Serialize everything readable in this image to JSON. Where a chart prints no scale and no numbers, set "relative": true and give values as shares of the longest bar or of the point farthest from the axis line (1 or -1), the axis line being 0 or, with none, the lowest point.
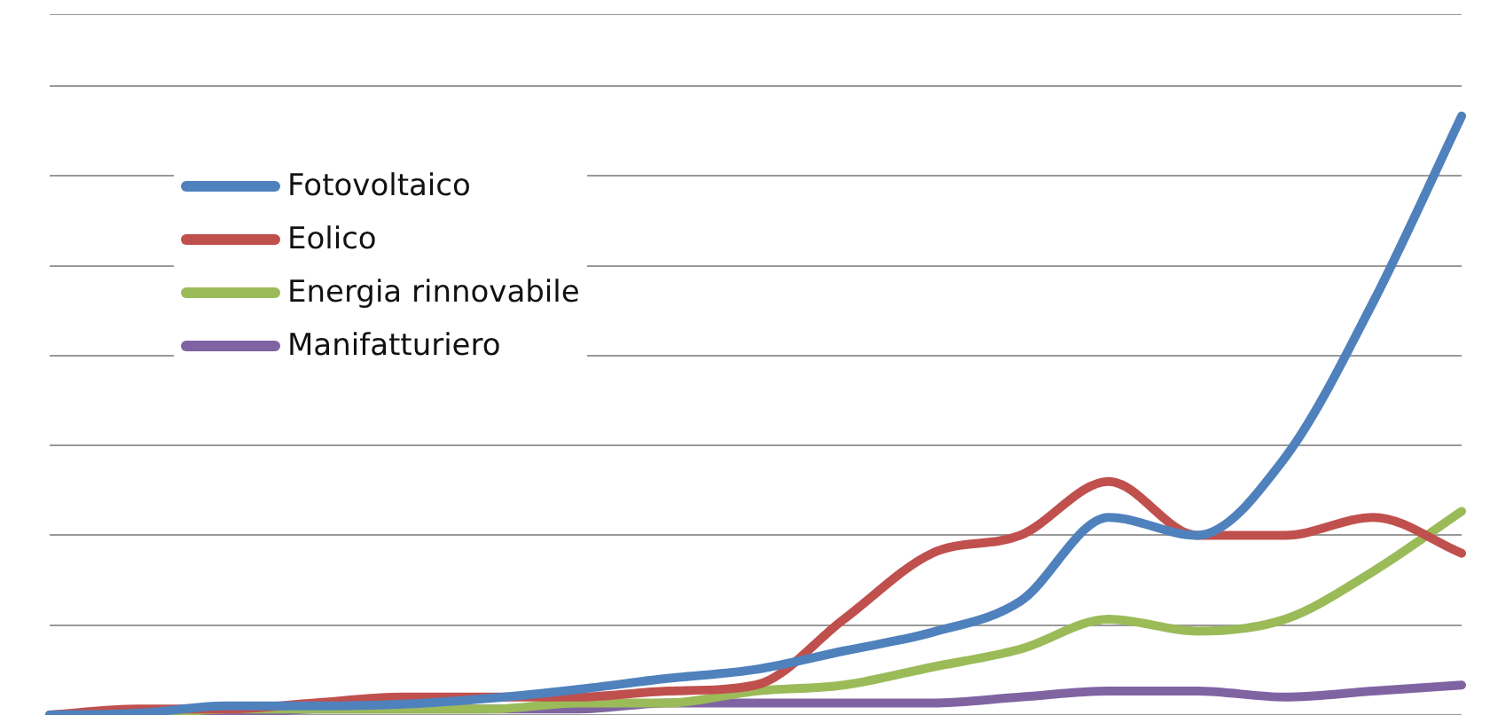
{
  "chart_data": {
    "type": "line",
    "relative": true,
    "grid": "y",
    "legend": "top left",
    "marker": "none",
    "line_style": "solid",
    "categories": [
      null,
      null,
      null,
      null,
      null,
      null,
      null,
      null,
      null,
      null,
      null,
      null,
      null,
      null,
      null,
      null,
      null
    ],
    "series": [
      {
        "name": "Fotovoltaico",
        "color": "#4f81bd",
        "values": [
          0,
          0.003,
          0.015,
          0.015,
          0.018,
          0.028,
          0.043,
          0.061,
          0.076,
          0.107,
          0.138,
          0.19,
          0.33,
          0.3,
          0.43,
          0.69,
          1
        ]
      },
      {
        "name": "Eolico",
        "color": "#c0504d",
        "values": [
          0,
          0.01,
          0.01,
          0.02,
          0.03,
          0.03,
          0.03,
          0.04,
          0.05,
          0.16,
          0.27,
          0.3,
          0.39,
          0.3,
          0.3,
          0.33,
          0.27
        ]
      },
      {
        "name": "Energia rinnovabile",
        "color": "#9bbb59",
        "values": [
          0,
          0,
          0.01,
          0.01,
          0.01,
          0.01,
          0.02,
          0.02,
          0.04,
          0.05,
          0.08,
          0.11,
          0.16,
          0.14,
          0.16,
          0.24,
          0.34
        ]
      },
      {
        "name": "Manifatturiero",
        "color": "#8064a2",
        "values": [
          0,
          0,
          0,
          0.01,
          0.01,
          0.01,
          0.01,
          0.02,
          0.02,
          0.02,
          0.02,
          0.03,
          0.04,
          0.04,
          0.03,
          0.04,
          0.05
        ]
      }
    ]
  }
}
